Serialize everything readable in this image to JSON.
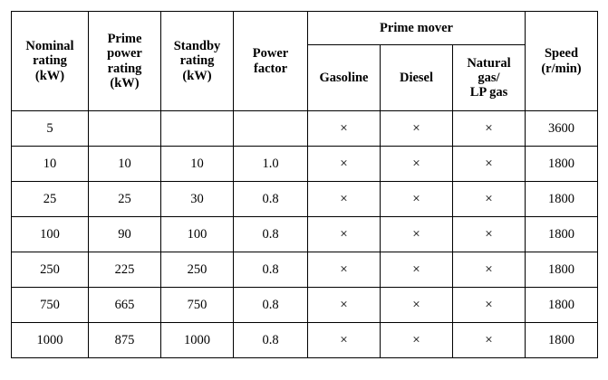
{
  "table": {
    "headers": {
      "nominal_rating": "Nominal rating (kW)",
      "prime_power_rating": "Prime power rating (kW)",
      "standby_rating": "Standby rating (kW)",
      "power_factor": "Power factor",
      "prime_mover": "Prime mover",
      "gasoline": "Gasoline",
      "diesel": "Diesel",
      "natural_gas": "Natural gas/ LP gas",
      "speed": "Speed (r/min)"
    },
    "header_lines": {
      "nominal_rating": [
        "Nominal",
        "rating",
        "(kW)"
      ],
      "prime_power_rating": [
        "Prime",
        "power",
        "rating",
        "(kW)"
      ],
      "standby_rating": [
        "Standby",
        "rating",
        "(kW)"
      ],
      "power_factor": [
        "Power",
        "factor"
      ],
      "natural_gas": [
        "Natural",
        "gas/",
        "LP gas"
      ],
      "speed": [
        "Speed",
        "(r/min)"
      ]
    },
    "rows": [
      {
        "nominal": "5",
        "prime": "",
        "standby": "",
        "pf": "",
        "gasoline": "×",
        "diesel": "×",
        "gas": "×",
        "speed": "3600"
      },
      {
        "nominal": "10",
        "prime": "10",
        "standby": "10",
        "pf": "1.0",
        "gasoline": "×",
        "diesel": "×",
        "gas": "×",
        "speed": "1800"
      },
      {
        "nominal": "25",
        "prime": "25",
        "standby": "30",
        "pf": "0.8",
        "gasoline": "×",
        "diesel": "×",
        "gas": "×",
        "speed": "1800"
      },
      {
        "nominal": "100",
        "prime": "90",
        "standby": "100",
        "pf": "0.8",
        "gasoline": "×",
        "diesel": "×",
        "gas": "×",
        "speed": "1800"
      },
      {
        "nominal": "250",
        "prime": "225",
        "standby": "250",
        "pf": "0.8",
        "gasoline": "×",
        "diesel": "×",
        "gas": "×",
        "speed": "1800"
      },
      {
        "nominal": "750",
        "prime": "665",
        "standby": "750",
        "pf": "0.8",
        "gasoline": "×",
        "diesel": "×",
        "gas": "×",
        "speed": "1800"
      },
      {
        "nominal": "1000",
        "prime": "875",
        "standby": "1000",
        "pf": "0.8",
        "gasoline": "×",
        "diesel": "×",
        "gas": "×",
        "speed": "1800"
      }
    ]
  }
}
